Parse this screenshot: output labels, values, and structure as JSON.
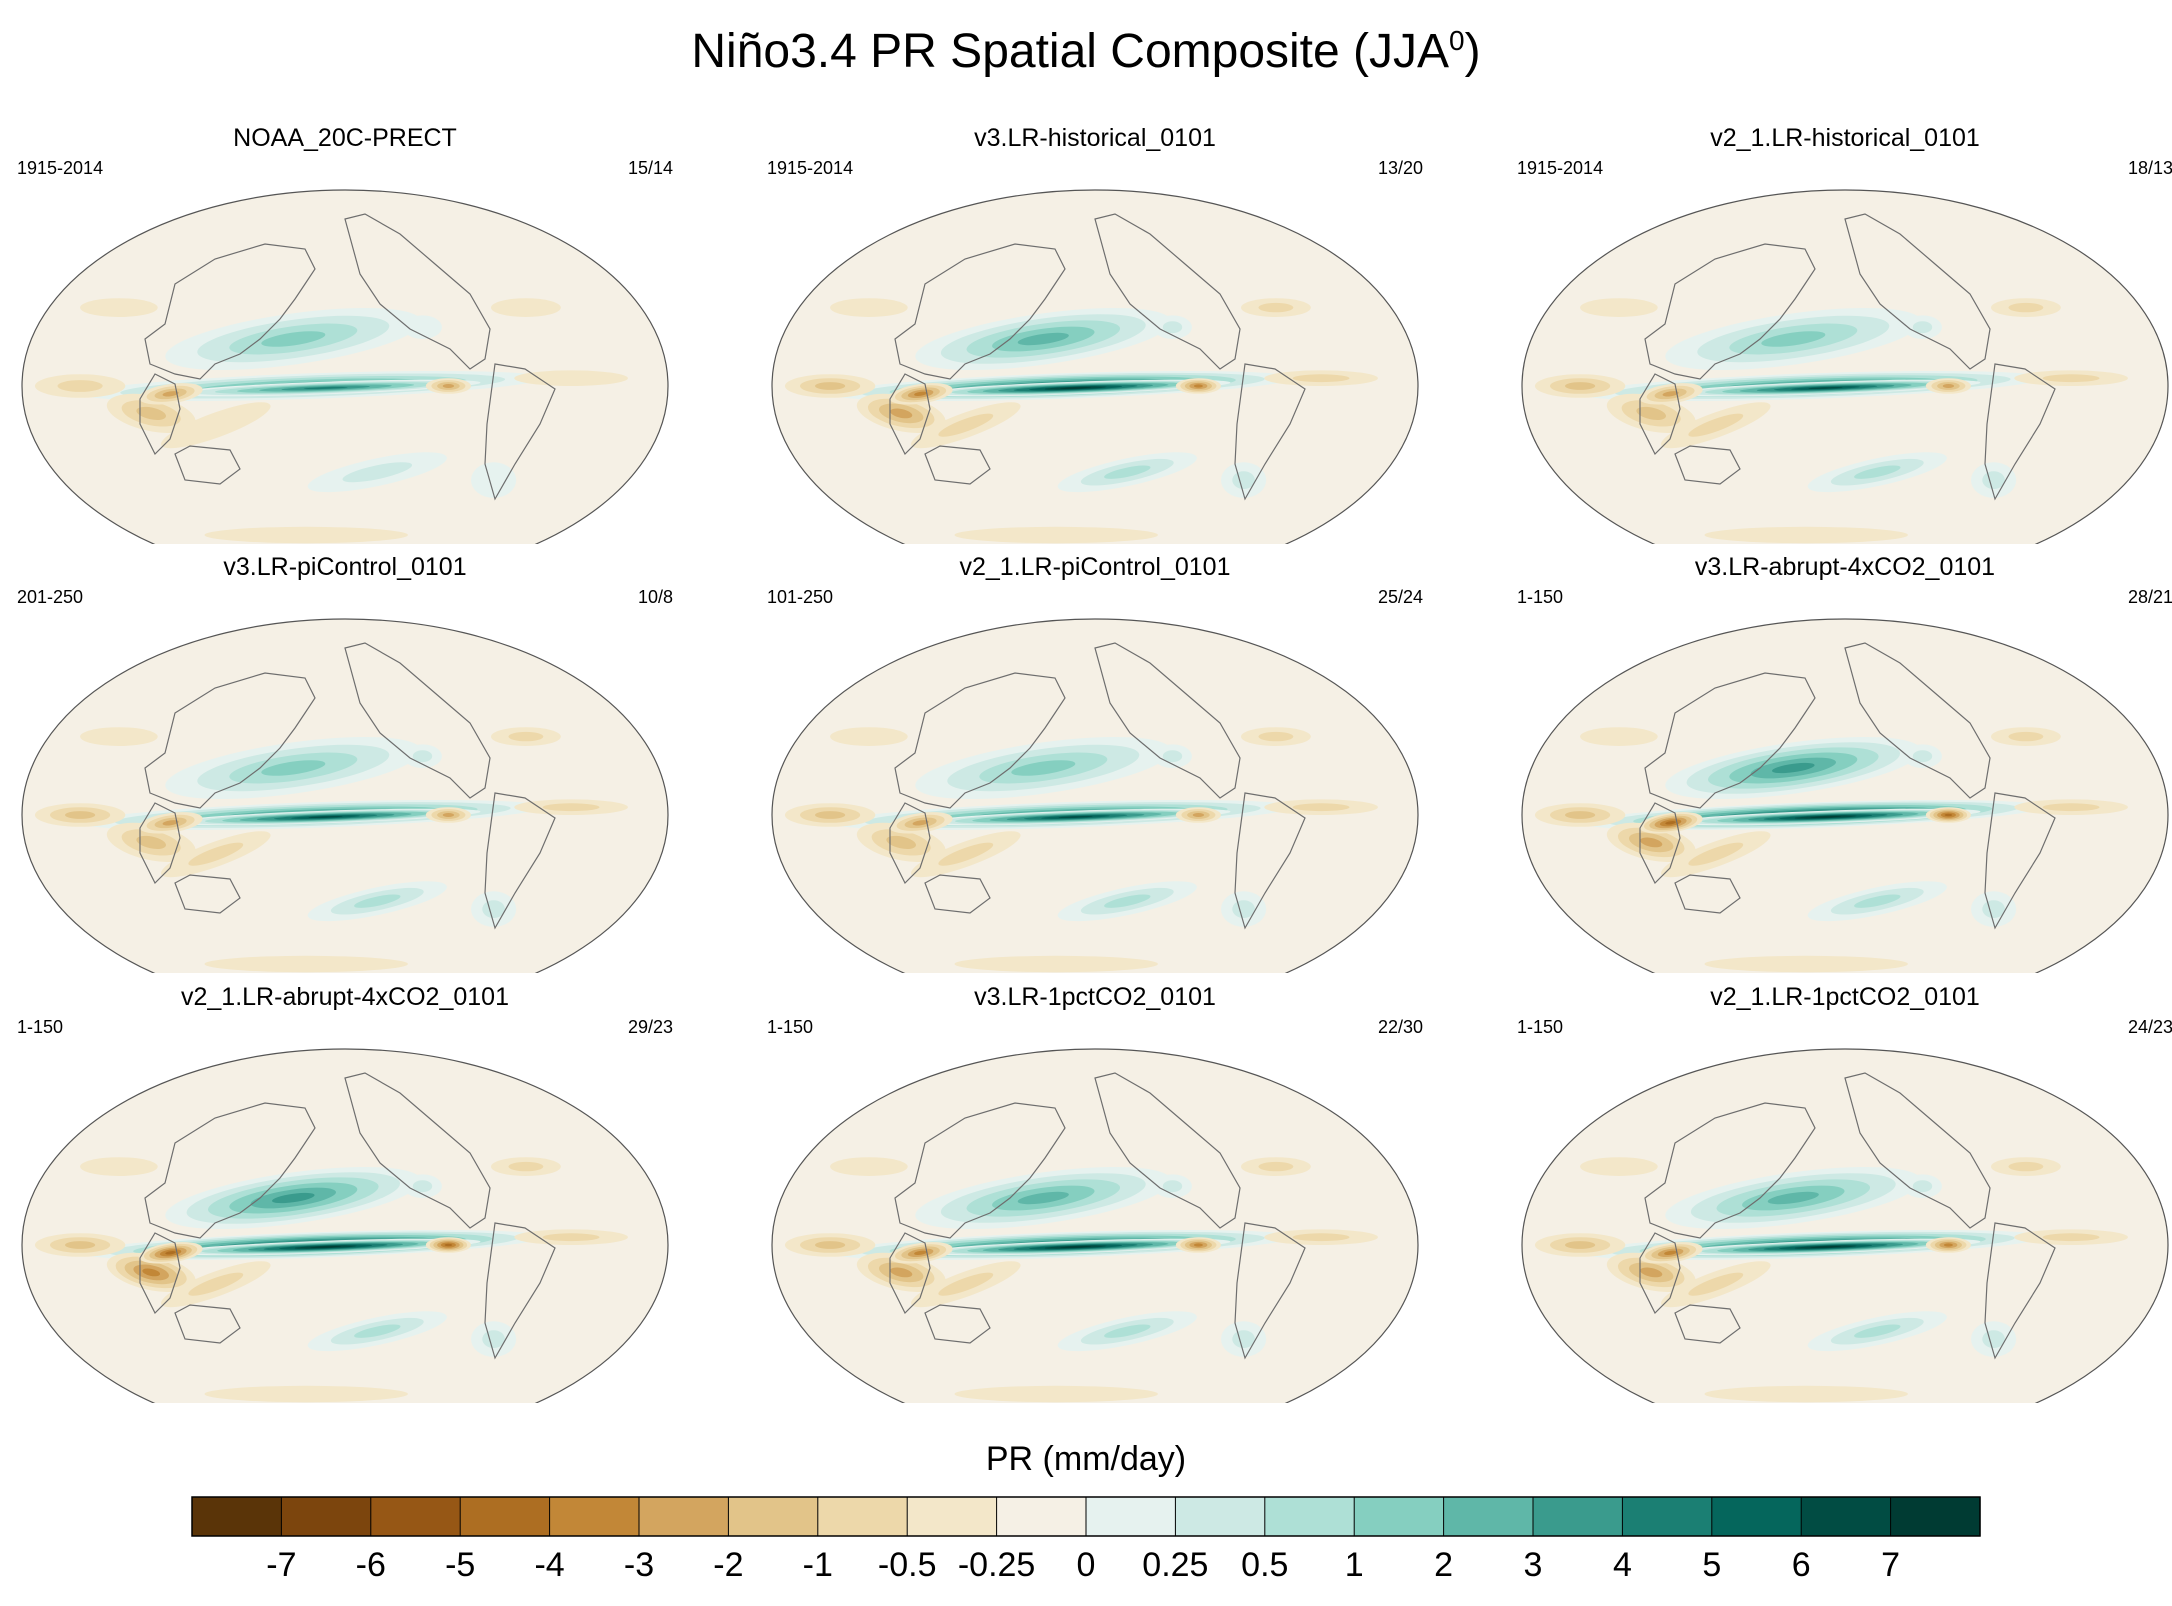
{
  "figure": {
    "title_main": "Niño3.4 PR Spatial Composite (JJA",
    "title_sup": "0",
    "title_end": ")"
  },
  "chart_data": {
    "type": "map-composite",
    "projection": "Robinson (global)",
    "variable": "PR",
    "units": "mm/day",
    "colorbar_label": "PR (mm/day)",
    "levels": [
      "-7",
      "-6",
      "-5",
      "-4",
      "-3",
      "-2",
      "-1",
      "-0.5",
      "-0.25",
      "0",
      "0.25",
      "0.5",
      "1",
      "2",
      "3",
      "4",
      "5",
      "6",
      "7"
    ],
    "colors": [
      "#5a3408",
      "#7c450d",
      "#965715",
      "#ad6e22",
      "#c28737",
      "#d3a55f",
      "#e2c489",
      "#edd8aa",
      "#f3e7c9",
      "#f5f0e5",
      "#e6f2ef",
      "#cde9e4",
      "#aee0d6",
      "#85cfc0",
      "#5fb7a8",
      "#3a9b8d",
      "#1b7f73",
      "#05665c",
      "#014c43",
      "#003b33"
    ],
    "panels": [
      {
        "name": "NOAA_20C-PRECT",
        "years": "1915-2014",
        "counts": "15/14",
        "intensity": 0.7
      },
      {
        "name": "v3.LR-historical_0101",
        "years": "1915-2014",
        "counts": "13/20",
        "intensity": 1.0
      },
      {
        "name": "v2_1.LR-historical_0101",
        "years": "1915-2014",
        "counts": "18/13",
        "intensity": 0.85
      },
      {
        "name": "v3.LR-piControl_0101",
        "years": "201-250",
        "counts": "10/8",
        "intensity": 0.85
      },
      {
        "name": "v2_1.LR-piControl_0101",
        "years": "101-250",
        "counts": "25/24",
        "intensity": 0.85
      },
      {
        "name": "v3.LR-abrupt-4xCO2_0101",
        "years": "1-150",
        "counts": "28/21",
        "intensity": 1.1
      },
      {
        "name": "v2_1.LR-abrupt-4xCO2_0101",
        "years": "1-150",
        "counts": "29/23",
        "intensity": 1.15
      },
      {
        "name": "v3.LR-1pctCO2_0101",
        "years": "1-150",
        "counts": "22/30",
        "intensity": 1.0
      },
      {
        "name": "v2_1.LR-1pctCO2_0101",
        "years": "1-150",
        "counts": "24/23",
        "intensity": 0.95
      }
    ]
  }
}
